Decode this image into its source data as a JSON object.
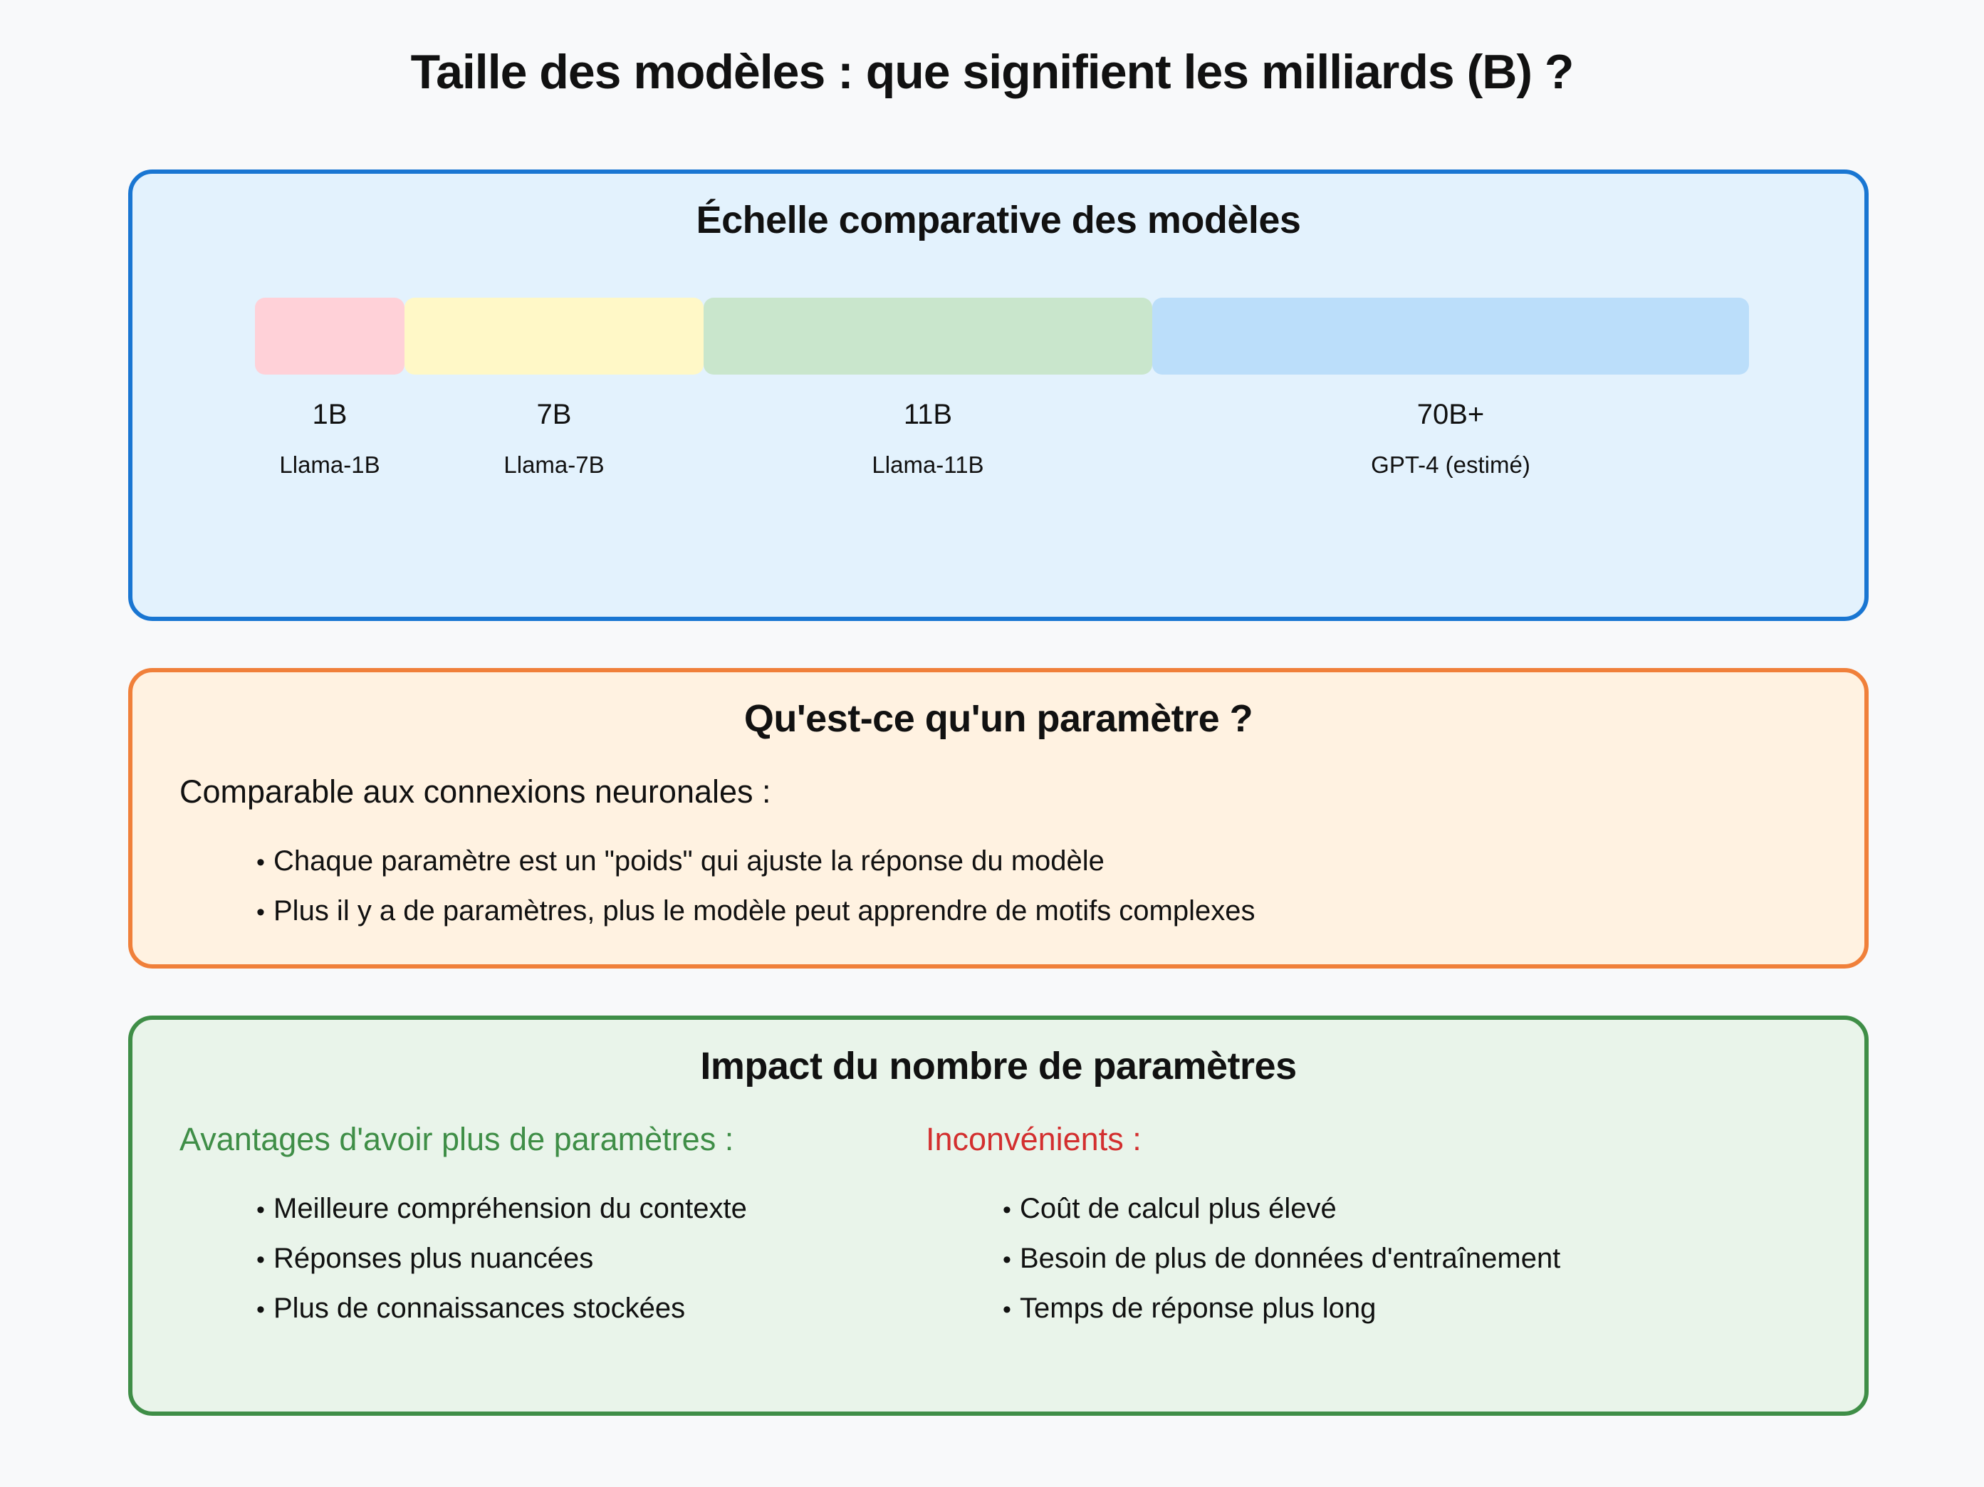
{
  "title": "Taille des modèles : que signifient les milliards (B) ?",
  "scale": {
    "heading": "Échelle comparative des modèles",
    "models": [
      {
        "size": "1B",
        "name": "Llama-1B",
        "color": "#ffd1d8"
      },
      {
        "size": "7B",
        "name": "Llama-7B",
        "color": "#fff8c7"
      },
      {
        "size": "11B",
        "name": "Llama-11B",
        "color": "#c9e6cc"
      },
      {
        "size": "70B+",
        "name": "GPT-4 (estimé)",
        "color": "#bbdefa"
      }
    ]
  },
  "parameter": {
    "heading": "Qu'est-ce qu'un paramètre ?",
    "intro": "Comparable aux connexions neuronales :",
    "bullets": [
      "Chaque paramètre est un \"poids\" qui ajuste la réponse du modèle",
      "Plus il y a de paramètres, plus le modèle peut apprendre de motifs complexes"
    ]
  },
  "impact": {
    "heading": "Impact du nombre de paramètres",
    "pros_title": "Avantages d'avoir plus de paramètres :",
    "pros_color": "#3f8e47",
    "pros": [
      "Meilleure compréhension du contexte",
      "Réponses plus nuancées",
      "Plus de connaissances stockées"
    ],
    "cons_title": "Inconvénients :",
    "cons_color": "#d32f2f",
    "cons": [
      "Coût de calcul plus élevé",
      "Besoin de plus de données d'entraînement",
      "Temps de réponse plus long"
    ]
  },
  "colors": {
    "scale_border": "#1976d2",
    "param_border": "#f0803a",
    "impact_border": "#3f8e47"
  }
}
